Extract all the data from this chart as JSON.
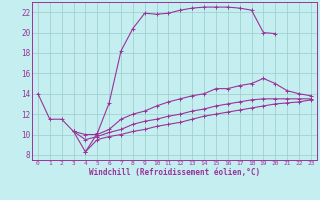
{
  "xlabel": "Windchill (Refroidissement éolien,°C)",
  "bg_color": "#c5eef0",
  "grid_color": "#99cccc",
  "line_color": "#993399",
  "spine_color": "#993399",
  "xlim": [
    -0.5,
    23.5
  ],
  "ylim": [
    7.5,
    23.0
  ],
  "xticks": [
    0,
    1,
    2,
    3,
    4,
    5,
    6,
    7,
    8,
    9,
    10,
    11,
    12,
    13,
    14,
    15,
    16,
    17,
    18,
    19,
    20,
    21,
    22,
    23
  ],
  "yticks": [
    8,
    10,
    12,
    14,
    16,
    18,
    20,
    22
  ],
  "curves": [
    {
      "x": [
        0,
        1,
        2,
        3,
        4,
        5,
        6,
        7,
        8,
        9,
        10,
        11,
        12,
        13,
        14,
        15,
        16,
        17,
        18,
        19,
        20
      ],
      "y": [
        14,
        11.5,
        11.5,
        10.3,
        8.3,
        10.1,
        13.1,
        18.2,
        20.4,
        21.9,
        21.8,
        21.9,
        22.2,
        22.4,
        22.5,
        22.5,
        22.5,
        22.4,
        22.2,
        20.0,
        19.9
      ]
    },
    {
      "x": [
        3,
        4,
        5,
        6,
        7,
        8,
        9,
        10,
        11,
        12,
        13,
        14,
        15,
        16,
        17,
        18,
        19,
        20,
        21,
        22,
        23
      ],
      "y": [
        10.3,
        10.0,
        10.0,
        10.5,
        11.5,
        12.0,
        12.3,
        12.8,
        13.2,
        13.5,
        13.8,
        14.0,
        14.5,
        14.5,
        14.8,
        15.0,
        15.5,
        15.0,
        14.3,
        14.0,
        13.8
      ]
    },
    {
      "x": [
        3,
        4,
        5,
        6,
        7,
        8,
        9,
        10,
        11,
        12,
        13,
        14,
        15,
        16,
        17,
        18,
        19,
        20,
        21,
        22,
        23
      ],
      "y": [
        10.3,
        9.5,
        9.8,
        10.2,
        10.5,
        11.0,
        11.3,
        11.5,
        11.8,
        12.0,
        12.3,
        12.5,
        12.8,
        13.0,
        13.2,
        13.4,
        13.5,
        13.5,
        13.5,
        13.5,
        13.5
      ]
    },
    {
      "x": [
        4,
        5,
        6,
        7,
        8,
        9,
        10,
        11,
        12,
        13,
        14,
        15,
        16,
        17,
        18,
        19,
        20,
        21,
        22,
        23
      ],
      "y": [
        8.3,
        9.5,
        9.8,
        10.0,
        10.3,
        10.5,
        10.8,
        11.0,
        11.2,
        11.5,
        11.8,
        12.0,
        12.2,
        12.4,
        12.6,
        12.8,
        13.0,
        13.1,
        13.2,
        13.4
      ]
    }
  ]
}
